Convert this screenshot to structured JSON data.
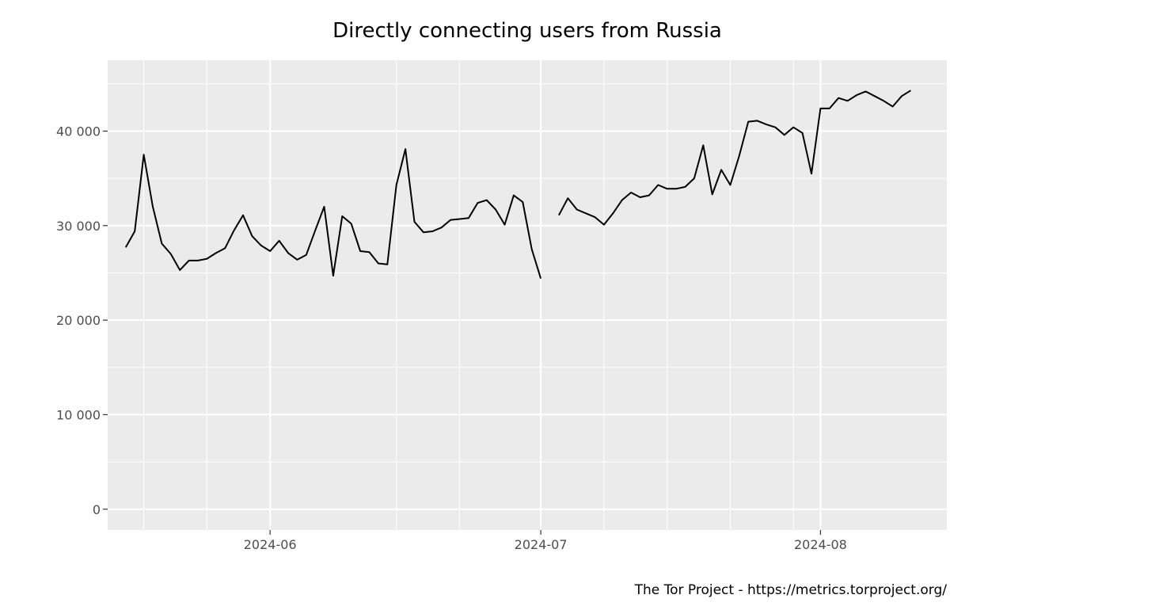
{
  "chart_data": {
    "type": "line",
    "title": "Directly connecting users from Russia",
    "caption": "The Tor Project - https://metrics.torproject.org/",
    "xlabel": "",
    "ylabel": "",
    "xlim": [
      "2024-05-14",
      "2024-08-15"
    ],
    "ylim": [
      -2200,
      47500
    ],
    "grid": true,
    "legend": "none",
    "colors": {
      "panel": "#ebebeb",
      "grid": "#ffffff",
      "line": "#000000",
      "tick_text": "#4d4d4d"
    },
    "y_ticks": [
      {
        "value": 0,
        "label": "0"
      },
      {
        "value": 10000,
        "label": "10 000"
      },
      {
        "value": 20000,
        "label": "20 000"
      },
      {
        "value": 30000,
        "label": "30 000"
      },
      {
        "value": 40000,
        "label": "40 000"
      }
    ],
    "x_ticks": [
      {
        "value": "2024-06-01",
        "label": "2024-06"
      },
      {
        "value": "2024-07-01",
        "label": "2024-07"
      },
      {
        "value": "2024-08-01",
        "label": "2024-08"
      }
    ],
    "x_minor_ticks": [
      "2024-05-18",
      "2024-05-25",
      "2024-06-15",
      "2024-06-22",
      "2024-07-08",
      "2024-07-15",
      "2024-07-22",
      "2024-07-29"
    ],
    "series": [
      {
        "values": [
          [
            "2024-05-16",
            27700
          ],
          [
            "2024-05-17",
            29400
          ],
          [
            "2024-05-18",
            37500
          ],
          [
            "2024-05-19",
            32000
          ],
          [
            "2024-05-20",
            28100
          ],
          [
            "2024-05-21",
            27000
          ],
          [
            "2024-05-22",
            25300
          ],
          [
            "2024-05-23",
            26300
          ],
          [
            "2024-05-24",
            26300
          ],
          [
            "2024-05-25",
            26500
          ],
          [
            "2024-05-26",
            27100
          ],
          [
            "2024-05-27",
            27600
          ],
          [
            "2024-05-28",
            29500
          ],
          [
            "2024-05-29",
            31100
          ],
          [
            "2024-05-30",
            28900
          ],
          [
            "2024-05-31",
            27900
          ],
          [
            "2024-06-01",
            27300
          ],
          [
            "2024-06-02",
            28400
          ],
          [
            "2024-06-03",
            27100
          ],
          [
            "2024-06-04",
            26400
          ],
          [
            "2024-06-05",
            26900
          ],
          [
            "2024-06-06",
            29500
          ],
          [
            "2024-06-07",
            32000
          ],
          [
            "2024-06-08",
            24700
          ],
          [
            "2024-06-09",
            31000
          ],
          [
            "2024-06-10",
            30200
          ],
          [
            "2024-06-11",
            27300
          ],
          [
            "2024-06-12",
            27200
          ],
          [
            "2024-06-13",
            26000
          ],
          [
            "2024-06-14",
            25900
          ],
          [
            "2024-06-15",
            34300
          ],
          [
            "2024-06-16",
            38100
          ],
          [
            "2024-06-17",
            30400
          ],
          [
            "2024-06-18",
            29300
          ],
          [
            "2024-06-19",
            29400
          ],
          [
            "2024-06-20",
            29800
          ],
          [
            "2024-06-21",
            30600
          ],
          [
            "2024-06-22",
            30700
          ],
          [
            "2024-06-23",
            30800
          ],
          [
            "2024-06-24",
            32400
          ],
          [
            "2024-06-25",
            32700
          ],
          [
            "2024-06-26",
            31700
          ],
          [
            "2024-06-27",
            30100
          ],
          [
            "2024-06-28",
            33200
          ],
          [
            "2024-06-29",
            32500
          ],
          [
            "2024-06-30",
            27500
          ],
          [
            "2024-07-01",
            24400
          ]
        ]
      },
      {
        "values": [
          [
            "2024-07-03",
            31100
          ],
          [
            "2024-07-04",
            32900
          ],
          [
            "2024-07-05",
            31700
          ],
          [
            "2024-07-06",
            31300
          ],
          [
            "2024-07-07",
            30900
          ],
          [
            "2024-07-08",
            30100
          ],
          [
            "2024-07-09",
            31300
          ],
          [
            "2024-07-10",
            32700
          ],
          [
            "2024-07-11",
            33500
          ],
          [
            "2024-07-12",
            33000
          ],
          [
            "2024-07-13",
            33200
          ],
          [
            "2024-07-14",
            34300
          ],
          [
            "2024-07-15",
            33900
          ],
          [
            "2024-07-16",
            33900
          ],
          [
            "2024-07-17",
            34100
          ],
          [
            "2024-07-18",
            35000
          ],
          [
            "2024-07-19",
            38500
          ],
          [
            "2024-07-20",
            33300
          ],
          [
            "2024-07-21",
            35900
          ],
          [
            "2024-07-22",
            34300
          ],
          [
            "2024-07-23",
            37400
          ],
          [
            "2024-07-24",
            41000
          ],
          [
            "2024-07-25",
            41100
          ],
          [
            "2024-07-26",
            40700
          ],
          [
            "2024-07-27",
            40400
          ],
          [
            "2024-07-28",
            39600
          ],
          [
            "2024-07-29",
            40400
          ],
          [
            "2024-07-30",
            39800
          ],
          [
            "2024-07-31",
            35500
          ],
          [
            "2024-08-01",
            42400
          ],
          [
            "2024-08-02",
            42400
          ],
          [
            "2024-08-03",
            43500
          ],
          [
            "2024-08-04",
            43200
          ],
          [
            "2024-08-05",
            43800
          ],
          [
            "2024-08-06",
            44200
          ],
          [
            "2024-08-07",
            43700
          ],
          [
            "2024-08-08",
            43200
          ],
          [
            "2024-08-09",
            42600
          ],
          [
            "2024-08-10",
            43700
          ],
          [
            "2024-08-11",
            44300
          ]
        ]
      }
    ]
  }
}
